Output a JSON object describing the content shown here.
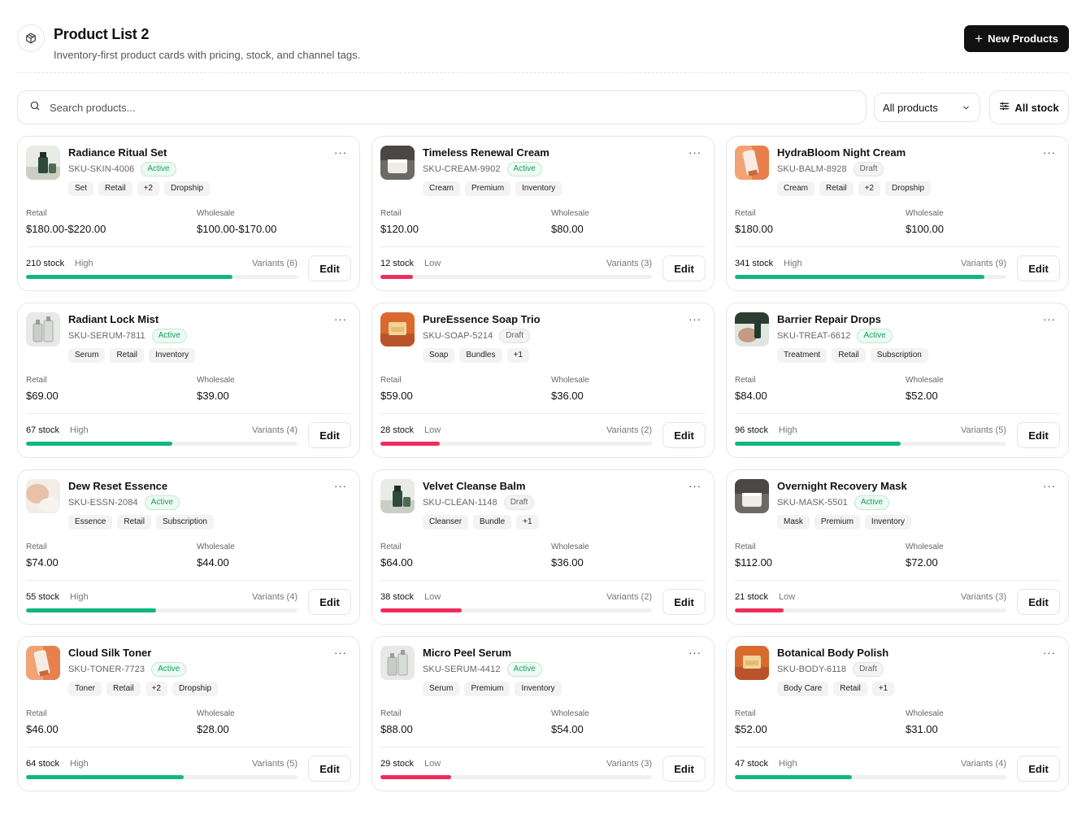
{
  "header": {
    "title": "Product List 2",
    "subtitle": "Inventory-first product cards with pricing, stock, and channel tags.",
    "logo_icon": "box-icon",
    "new_button_label": "New Products"
  },
  "toolbar": {
    "search_placeholder": "Search products...",
    "filter_value": "All products",
    "stock_button_label": "All stock"
  },
  "labels": {
    "retail": "Retail",
    "wholesale": "Wholesale",
    "edit": "Edit",
    "more": "···"
  },
  "colors": {
    "high": "#12b77b",
    "low": "#ef2d5a"
  },
  "products": [
    {
      "name": "Radiance Ritual Set",
      "sku": "SKU-SKIN-4006",
      "status": "Active",
      "tags": [
        "Set",
        "Retail",
        "+2",
        "Dropship"
      ],
      "retail": "$180.00-$220.00",
      "wholesale": "$100.00-$170.00",
      "stock": "210 stock",
      "level": "High",
      "variants": "Variants (6)",
      "fill": 0.76,
      "thumb": "green-bottle"
    },
    {
      "name": "Timeless Renewal Cream",
      "sku": "SKU-CREAM-9902",
      "status": "Active",
      "tags": [
        "Cream",
        "Premium",
        "Inventory"
      ],
      "retail": "$120.00",
      "wholesale": "$80.00",
      "stock": "12 stock",
      "level": "Low",
      "variants": "Variants (3)",
      "fill": 0.12,
      "thumb": "grey-jar"
    },
    {
      "name": "HydraBloom Night Cream",
      "sku": "SKU-BALM-8928",
      "status": "Draft",
      "tags": [
        "Cream",
        "Retail",
        "+2",
        "Dropship"
      ],
      "retail": "$180.00",
      "wholesale": "$100.00",
      "stock": "341 stock",
      "level": "High",
      "variants": "Variants (9)",
      "fill": 0.92,
      "thumb": "orange-tube"
    },
    {
      "name": "Radiant Lock Mist",
      "sku": "SKU-SERUM-7811",
      "status": "Active",
      "tags": [
        "Serum",
        "Retail",
        "Inventory"
      ],
      "retail": "$69.00",
      "wholesale": "$39.00",
      "stock": "67 stock",
      "level": "High",
      "variants": "Variants (4)",
      "fill": 0.54,
      "thumb": "glass-bottles"
    },
    {
      "name": "PureEssence Soap Trio",
      "sku": "SKU-SOAP-5214",
      "status": "Draft",
      "tags": [
        "Soap",
        "Bundles",
        "+1"
      ],
      "retail": "$59.00",
      "wholesale": "$36.00",
      "stock": "28 stock",
      "level": "Low",
      "variants": "Variants (2)",
      "fill": 0.22,
      "thumb": "orange-box"
    },
    {
      "name": "Barrier Repair Drops",
      "sku": "SKU-TREAT-6612",
      "status": "Active",
      "tags": [
        "Treatment",
        "Retail",
        "Subscription"
      ],
      "retail": "$84.00",
      "wholesale": "$52.00",
      "stock": "96 stock",
      "level": "High",
      "variants": "Variants (5)",
      "fill": 0.61,
      "thumb": "hand-dropper"
    },
    {
      "name": "Dew Reset Essence",
      "sku": "SKU-ESSN-2084",
      "status": "Active",
      "tags": [
        "Essence",
        "Retail",
        "Subscription"
      ],
      "retail": "$74.00",
      "wholesale": "$44.00",
      "stock": "55 stock",
      "level": "High",
      "variants": "Variants (4)",
      "fill": 0.48,
      "thumb": "skin-shoulder"
    },
    {
      "name": "Velvet Cleanse Balm",
      "sku": "SKU-CLEAN-1148",
      "status": "Draft",
      "tags": [
        "Cleanser",
        "Bundle",
        "+1"
      ],
      "retail": "$64.00",
      "wholesale": "$36.00",
      "stock": "38 stock",
      "level": "Low",
      "variants": "Variants (2)",
      "fill": 0.3,
      "thumb": "green-bottle"
    },
    {
      "name": "Overnight Recovery Mask",
      "sku": "SKU-MASK-5501",
      "status": "Active",
      "tags": [
        "Mask",
        "Premium",
        "Inventory"
      ],
      "retail": "$112.00",
      "wholesale": "$72.00",
      "stock": "21 stock",
      "level": "Low",
      "variants": "Variants (3)",
      "fill": 0.18,
      "thumb": "grey-jar"
    },
    {
      "name": "Cloud Silk Toner",
      "sku": "SKU-TONER-7723",
      "status": "Active",
      "tags": [
        "Toner",
        "Retail",
        "+2",
        "Dropship"
      ],
      "retail": "$46.00",
      "wholesale": "$28.00",
      "stock": "64 stock",
      "level": "High",
      "variants": "Variants (5)",
      "fill": 0.58,
      "thumb": "orange-tube"
    },
    {
      "name": "Micro Peel Serum",
      "sku": "SKU-SERUM-4412",
      "status": "Active",
      "tags": [
        "Serum",
        "Premium",
        "Inventory"
      ],
      "retail": "$88.00",
      "wholesale": "$54.00",
      "stock": "29 stock",
      "level": "Low",
      "variants": "Variants (3)",
      "fill": 0.26,
      "thumb": "glass-bottles"
    },
    {
      "name": "Botanical Body Polish",
      "sku": "SKU-BODY-6118",
      "status": "Draft",
      "tags": [
        "Body Care",
        "Retail",
        "+1"
      ],
      "retail": "$52.00",
      "wholesale": "$31.00",
      "stock": "47 stock",
      "level": "High",
      "variants": "Variants (4)",
      "fill": 0.43,
      "thumb": "orange-box"
    }
  ]
}
